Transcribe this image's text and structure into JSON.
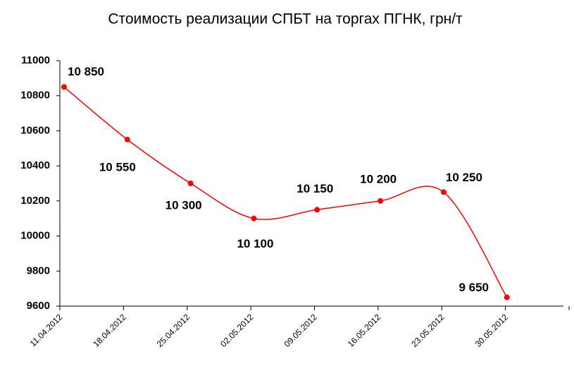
{
  "chart_data": {
    "type": "line",
    "title": "Стоимость реализации СПБТ на торгах ПГНК, грн/т",
    "categories": [
      "11.04.2012",
      "18.04.2012",
      "25.04.2012",
      "02.05.2012",
      "09.05.2012",
      "16.05.2012",
      "23.05.2012",
      "30.05.2012"
    ],
    "values": [
      10850,
      10550,
      10300,
      10100,
      10150,
      10200,
      10250,
      9650
    ],
    "value_labels": [
      "10 850",
      "10 550",
      "10 300",
      "10 100",
      "10 150",
      "10 200",
      "10 250",
      "9 650"
    ],
    "color": "#ff0000",
    "ylim": [
      9600,
      11000
    ],
    "yticks": [
      9600,
      9800,
      10000,
      10200,
      10400,
      10600,
      10800,
      11000
    ],
    "grid": false
  }
}
